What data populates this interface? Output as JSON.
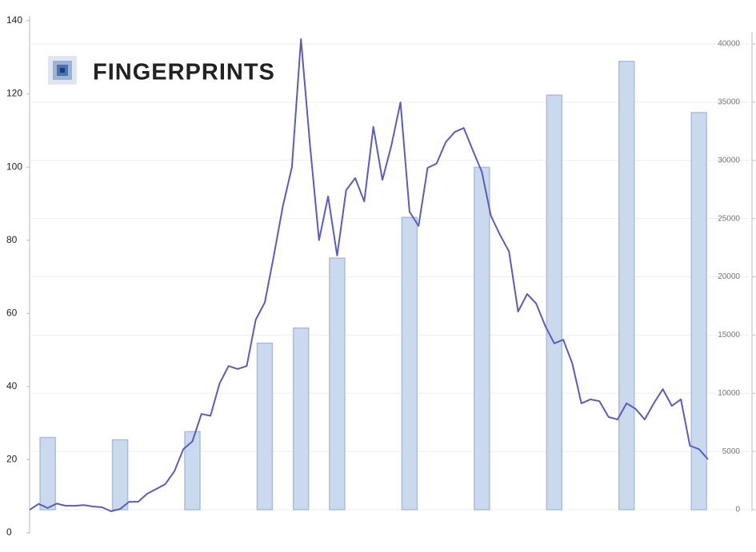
{
  "chart_data": {
    "type": "bar_line",
    "logo_text": "FINGERPRINTS",
    "categories": [
      null,
      null,
      null,
      null,
      null,
      null,
      null,
      null,
      null,
      null,
      null,
      null,
      null,
      null,
      null,
      null,
      null,
      null,
      null,
      null,
      null,
      null,
      null,
      null,
      null,
      null,
      null,
      null,
      null,
      null,
      null,
      null,
      null,
      null,
      null,
      null,
      null,
      null,
      null,
      null,
      null,
      null,
      null,
      null,
      null,
      null,
      null,
      null,
      null,
      null,
      null,
      null,
      null,
      null,
      null,
      null,
      null,
      null,
      null,
      null,
      null,
      null,
      null,
      null,
      null,
      null,
      null,
      null,
      null,
      null,
      null,
      null,
      null,
      null,
      null,
      null
    ],
    "series": [
      {
        "type": "bar",
        "axis": "y2",
        "color": "#cad9ed",
        "values": [
          null,
          null,
          6200,
          null,
          null,
          null,
          null,
          null,
          null,
          null,
          6000,
          null,
          null,
          null,
          null,
          null,
          null,
          null,
          6700,
          null,
          null,
          null,
          null,
          null,
          null,
          null,
          14300,
          null,
          null,
          null,
          15600,
          null,
          null,
          null,
          21600,
          null,
          null,
          null,
          null,
          null,
          null,
          null,
          25100,
          null,
          null,
          null,
          null,
          null,
          null,
          null,
          29400,
          null,
          null,
          null,
          null,
          null,
          null,
          null,
          35600,
          null,
          null,
          null,
          null,
          null,
          null,
          null,
          38500,
          null,
          null,
          null,
          null,
          null,
          null,
          null,
          34100,
          null
        ]
      },
      {
        "type": "line",
        "axis": "y",
        "color": "#5a5cbf",
        "values": [
          6.3,
          7.9,
          6.8,
          8,
          7.4,
          7.4,
          7.6,
          7.2,
          7,
          5.9,
          6.5,
          8.5,
          8.5,
          10.7,
          12,
          13.3,
          16.8,
          22.9,
          25,
          32.5,
          32,
          40.8,
          45.6,
          44.8,
          45.6,
          58.3,
          63,
          75.8,
          89.3,
          100,
          135,
          106,
          80,
          92,
          75.8,
          93.7,
          97,
          90.6,
          111,
          96.5,
          106,
          117.7,
          87.8,
          83.9,
          99.8,
          101,
          106.8,
          109.6,
          110.7,
          104.6,
          98.7,
          86.7,
          81.5,
          76.9,
          60.5,
          65.3,
          62.7,
          56.6,
          51.8,
          52.8,
          46.3,
          35.4,
          36.5,
          36,
          31.7,
          31,
          35.4,
          33.9,
          31,
          35.4,
          39.3,
          34.7,
          36.5,
          23.8,
          22.9,
          20.1
        ]
      }
    ],
    "ylim": [
      0,
      140
    ],
    "yticks": [
      0,
      20,
      40,
      60,
      80,
      100,
      120,
      140
    ],
    "y2lim": [
      0,
      40000
    ],
    "y2ticks": [
      0,
      5000,
      10000,
      15000,
      20000,
      25000,
      30000,
      35000,
      40000
    ],
    "grid": true
  }
}
